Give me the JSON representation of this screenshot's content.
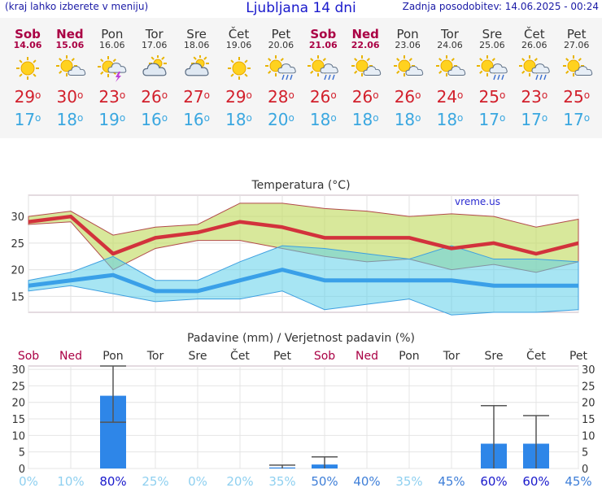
{
  "header": {
    "note": "(kraj lahko izberete v meniju)",
    "title": "Ljubljana 14 dni",
    "updated": "Zadnja posodobitev: 14.06.2025 - 00:24"
  },
  "colors": {
    "max": "#d2202c",
    "min": "#3aa7e0",
    "weekend": "#aa0044",
    "bar": "#2e86e8"
  },
  "days": [
    {
      "name": "Sob",
      "date": "14.06",
      "weekend": true,
      "icon": "sunny-icon",
      "max": 29,
      "min": 17
    },
    {
      "name": "Ned",
      "date": "15.06",
      "weekend": true,
      "icon": "partly-cloudy-icon",
      "max": 30,
      "min": 18
    },
    {
      "name": "Pon",
      "date": "16.06",
      "weekend": false,
      "icon": "thunderstorm-icon",
      "max": 23,
      "min": 19
    },
    {
      "name": "Tor",
      "date": "17.06",
      "weekend": false,
      "icon": "cloudy-icon",
      "max": 26,
      "min": 16
    },
    {
      "name": "Sre",
      "date": "18.06",
      "weekend": false,
      "icon": "cloudy-icon",
      "max": 27,
      "min": 16
    },
    {
      "name": "Čet",
      "date": "19.06",
      "weekend": false,
      "icon": "sunny-icon",
      "max": 29,
      "min": 18
    },
    {
      "name": "Pet",
      "date": "20.06",
      "weekend": false,
      "icon": "sun-rain-icon",
      "max": 28,
      "min": 20
    },
    {
      "name": "Sob",
      "date": "21.06",
      "weekend": true,
      "icon": "sun-rain-icon",
      "max": 26,
      "min": 18
    },
    {
      "name": "Ned",
      "date": "22.06",
      "weekend": true,
      "icon": "partly-cloudy-icon",
      "max": 26,
      "min": 18
    },
    {
      "name": "Pon",
      "date": "23.06",
      "weekend": false,
      "icon": "partly-cloudy-icon",
      "max": 26,
      "min": 18
    },
    {
      "name": "Tor",
      "date": "24.06",
      "weekend": false,
      "icon": "partly-cloudy-icon",
      "max": 24,
      "min": 18
    },
    {
      "name": "Sre",
      "date": "25.06",
      "weekend": false,
      "icon": "sun-rain-icon",
      "max": 25,
      "min": 17
    },
    {
      "name": "Čet",
      "date": "26.06",
      "weekend": false,
      "icon": "sun-rain-icon",
      "max": 23,
      "min": 17
    },
    {
      "name": "Pet",
      "date": "27.06",
      "weekend": false,
      "icon": "partly-cloudy-icon",
      "max": 25,
      "min": 17
    }
  ],
  "chart_data": [
    {
      "type": "line",
      "title": "Temperatura (°C)",
      "watermark": "vreme.us",
      "ylim": [
        12,
        34
      ],
      "yticks": [
        15,
        20,
        25,
        30
      ],
      "x": [
        1,
        2,
        3,
        4,
        5,
        6,
        7,
        8,
        9,
        10,
        11,
        12,
        13,
        14
      ],
      "series": [
        {
          "name": "max",
          "values": [
            29,
            30,
            23,
            26,
            27,
            29,
            28,
            26,
            26,
            26,
            24,
            25,
            23,
            25
          ]
        },
        {
          "name": "max_high",
          "values": [
            30,
            31,
            26.5,
            28,
            28.5,
            32.5,
            32.5,
            31.5,
            31,
            30,
            30.5,
            30,
            28,
            29.5
          ]
        },
        {
          "name": "max_low",
          "values": [
            28.5,
            29,
            20,
            24,
            25.5,
            25.5,
            24,
            22.5,
            21.5,
            22,
            20,
            21,
            19.5,
            21.5
          ]
        },
        {
          "name": "min",
          "values": [
            17,
            18,
            19,
            16,
            16,
            18,
            20,
            18,
            18,
            18,
            18,
            17,
            17,
            17
          ]
        },
        {
          "name": "min_high",
          "values": [
            18,
            19.5,
            22.5,
            18,
            18,
            21.5,
            24.5,
            24,
            23,
            22,
            24.5,
            22,
            22,
            21.5
          ]
        },
        {
          "name": "min_low",
          "values": [
            16,
            17,
            15.5,
            14,
            14.5,
            14.5,
            16,
            12.5,
            13.5,
            14.5,
            11.5,
            12,
            12,
            12.5
          ]
        }
      ]
    },
    {
      "type": "bar",
      "title": "Padavine (mm) / Verjetnost padavin (%)",
      "categories": [
        "Sob",
        "Ned",
        "Pon",
        "Tor",
        "Sre",
        "Čet",
        "Pet",
        "Sob",
        "Ned",
        "Pon",
        "Tor",
        "Sre",
        "Čet",
        "Pet"
      ],
      "weekend": [
        true,
        true,
        false,
        false,
        false,
        false,
        false,
        true,
        true,
        false,
        false,
        false,
        false,
        false
      ],
      "values": [
        0,
        0,
        22,
        0,
        0,
        0,
        0.3,
        1.2,
        0,
        0,
        0,
        7.5,
        7.5,
        0
      ],
      "err_high": [
        0,
        0,
        31,
        0,
        0,
        0,
        1,
        3.5,
        0,
        0,
        0,
        19,
        16,
        0
      ],
      "err_low": [
        0,
        0,
        14,
        0,
        0,
        0,
        0,
        0,
        0,
        0,
        0,
        0,
        0,
        0
      ],
      "probability": [
        "0%",
        "10%",
        "80%",
        "25%",
        "0%",
        "20%",
        "35%",
        "50%",
        "40%",
        "35%",
        "45%",
        "60%",
        "60%",
        "45%"
      ],
      "prob_values": [
        0,
        10,
        80,
        25,
        0,
        20,
        35,
        50,
        40,
        35,
        45,
        60,
        60,
        45
      ],
      "ylim": [
        0,
        31
      ],
      "yticks": [
        0,
        5,
        10,
        15,
        20,
        25,
        30
      ]
    }
  ]
}
